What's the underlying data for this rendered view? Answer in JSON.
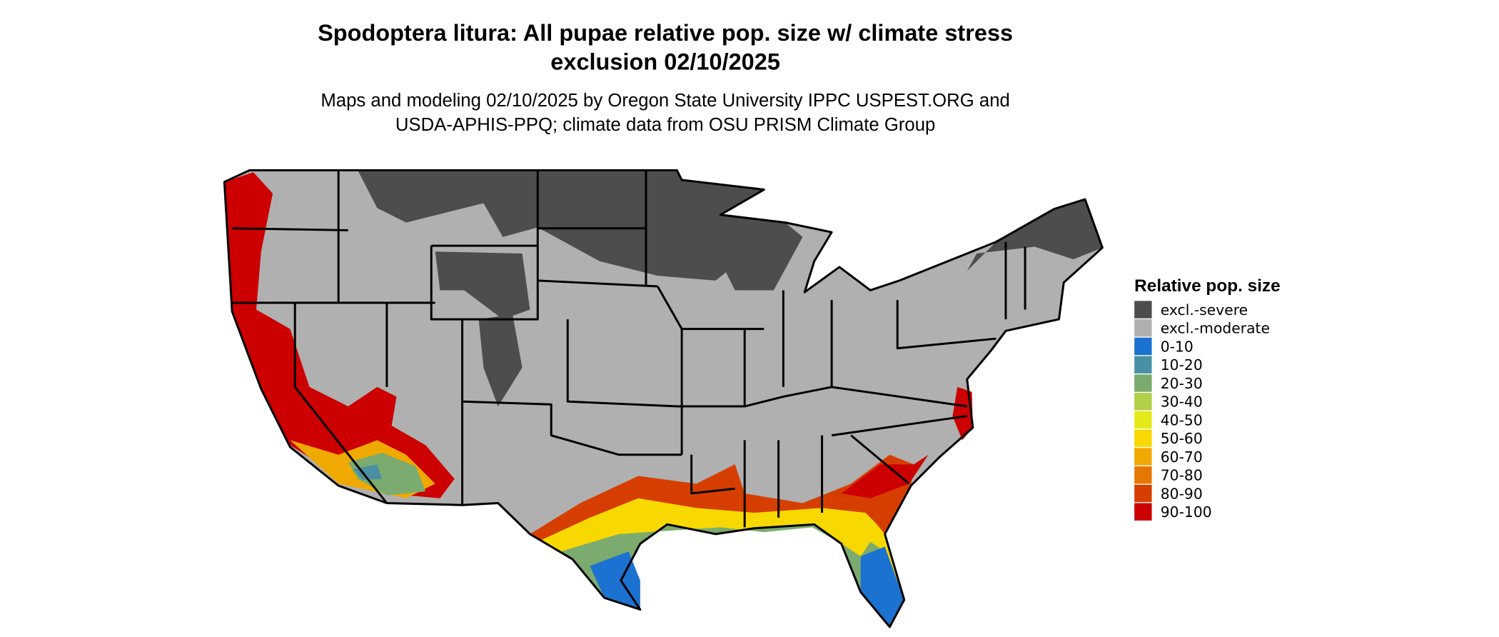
{
  "header": {
    "title_lines": [
      "Spodoptera litura: All pupae relative pop. size w/ climate stress",
      "exclusion 02/10/2025"
    ],
    "subtitle_lines": [
      "Maps and modeling 02/10/2025 by Oregon State University IPPC USPEST.ORG and",
      "USDA-APHIS-PPQ; climate data from OSU PRISM Climate Group"
    ]
  },
  "legend": {
    "title": "Relative pop. size",
    "items": [
      {
        "label": "excl.-severe",
        "color": "#4d4d4d"
      },
      {
        "label": "excl.-moderate",
        "color": "#b0b0b0"
      },
      {
        "label": "0-10",
        "color": "#1c72d0"
      },
      {
        "label": "10-20",
        "color": "#4a90a4"
      },
      {
        "label": "20-30",
        "color": "#7bab6e"
      },
      {
        "label": "30-40",
        "color": "#b2cf48"
      },
      {
        "label": "40-50",
        "color": "#e3ea18"
      },
      {
        "label": "50-60",
        "color": "#f7d800"
      },
      {
        "label": "60-70",
        "color": "#f0a900"
      },
      {
        "label": "70-80",
        "color": "#e67700"
      },
      {
        "label": "80-90",
        "color": "#d63e00"
      },
      {
        "label": "90-100",
        "color": "#cc0000"
      }
    ]
  }
}
